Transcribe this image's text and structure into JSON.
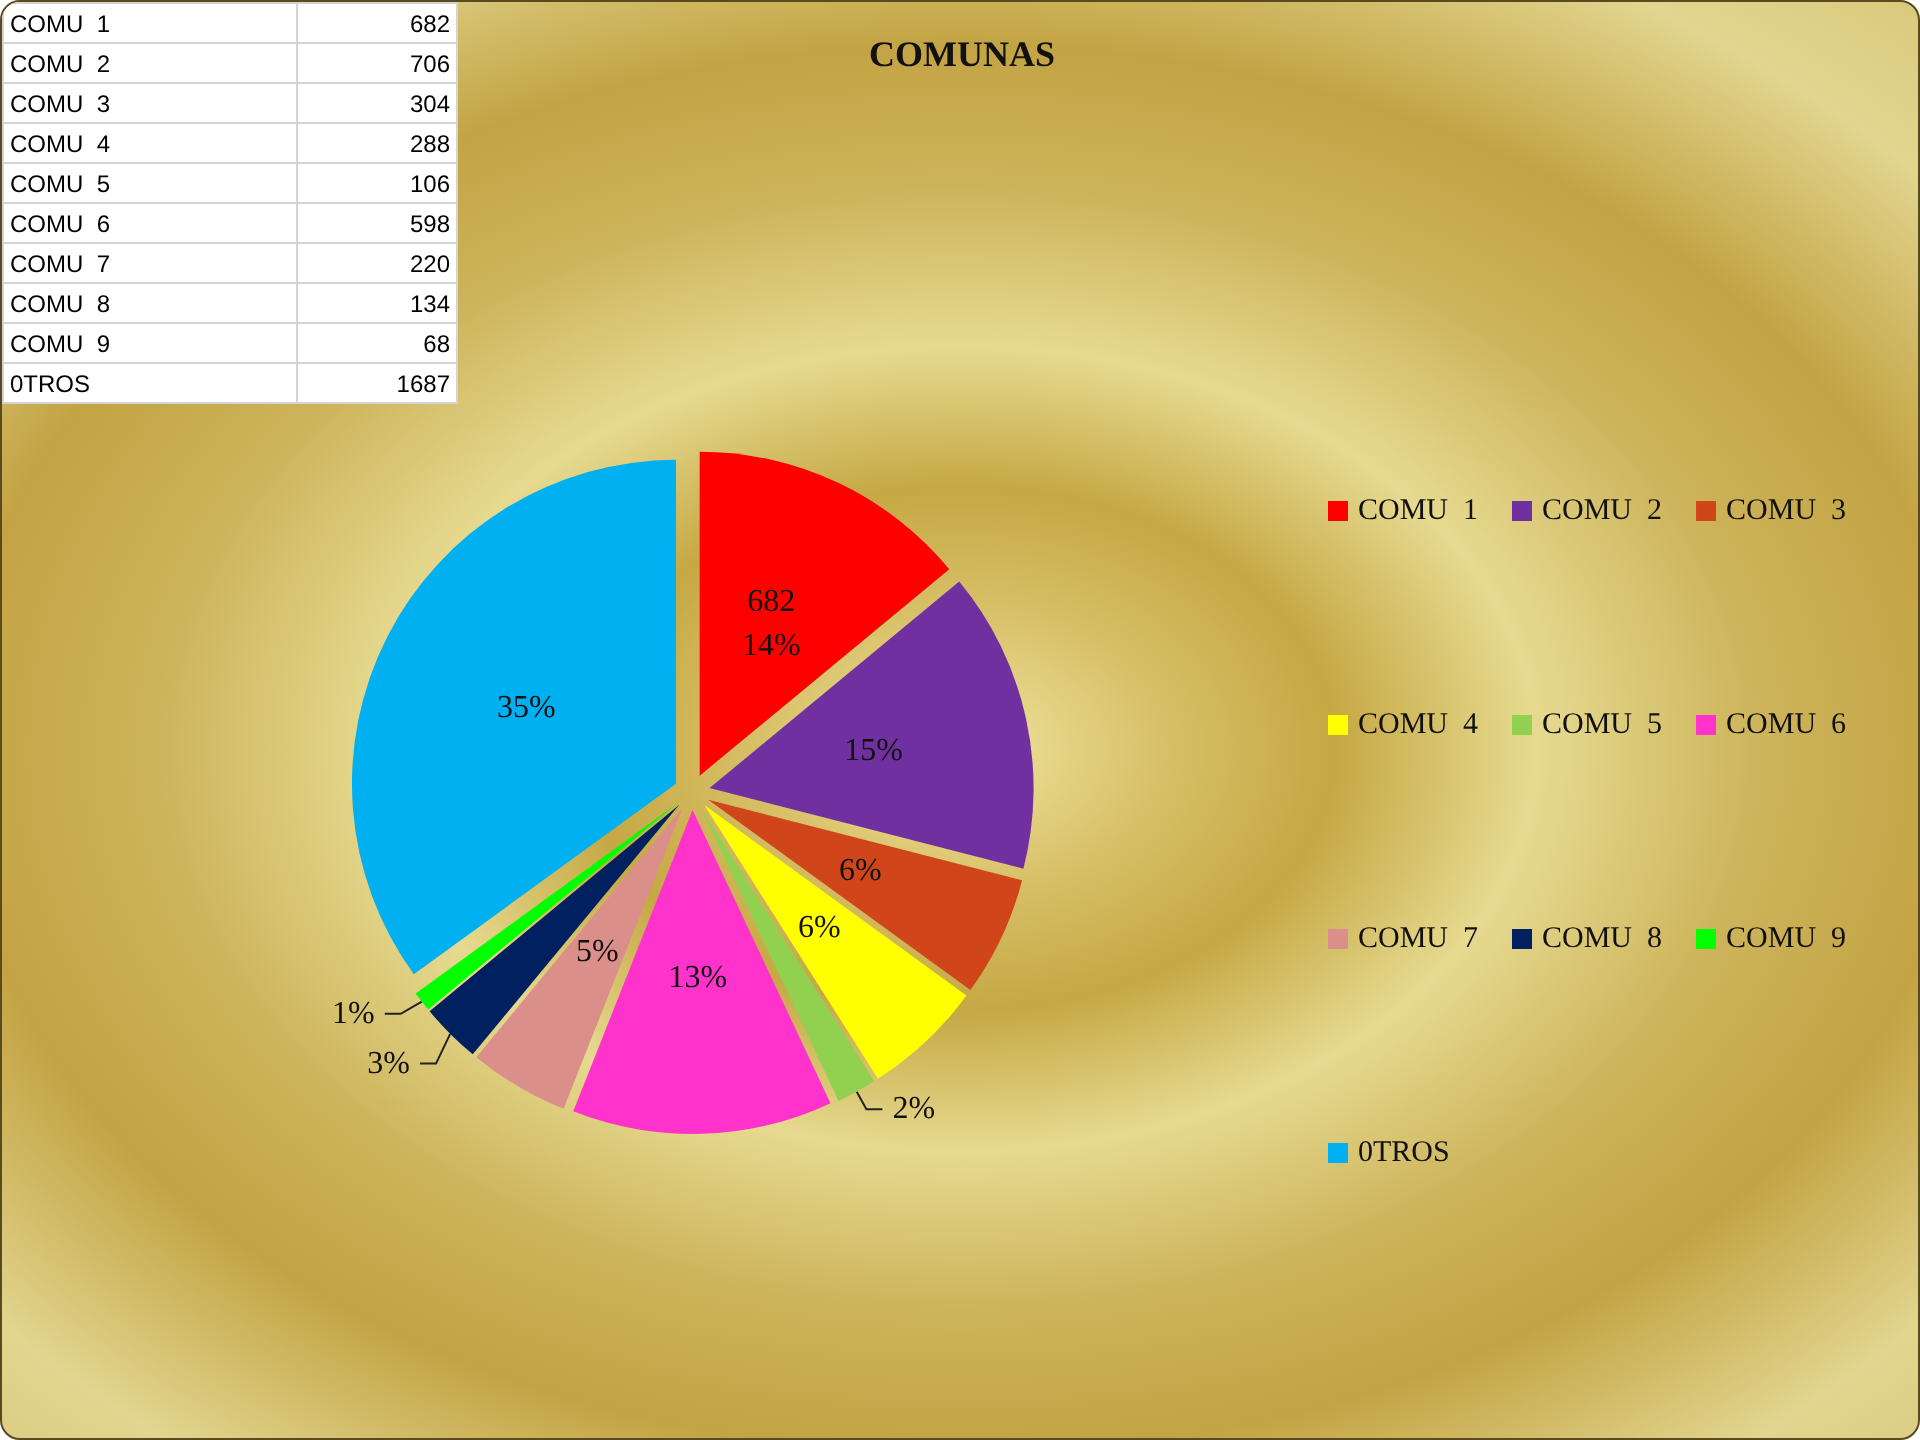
{
  "chart_data": [
    {
      "type": "other",
      "categories": [
        "COMU  1",
        "COMU  2",
        "COMU  3",
        "COMU  4",
        "COMU  5",
        "COMU  6",
        "COMU  7",
        "COMU  8",
        "COMU  9",
        "0TROS"
      ],
      "values": [
        682,
        706,
        304,
        288,
        106,
        598,
        220,
        134,
        68,
        1687
      ],
      "data_labels": true
    },
    {
      "type": "pie",
      "title": "COMUNAS",
      "categories": [
        "COMU  1",
        "COMU  2",
        "COMU  3",
        "COMU  4",
        "COMU  5",
        "COMU  6",
        "COMU  7",
        "COMU  8",
        "COMU  9",
        "0TROS"
      ],
      "values": [
        14,
        15,
        6,
        6,
        2,
        13,
        5,
        3,
        1,
        35
      ],
      "colors": [
        "#ff0000",
        "#7030a0",
        "#d0461a",
        "#ffff00",
        "#92d050",
        "#ff33cc",
        "#da8f8a",
        "#002060",
        "#00ff00",
        "#00b0f0"
      ],
      "value_labels": [
        "682\n14%",
        "15%",
        "6%",
        "6%",
        "2%",
        "13%",
        "5%",
        "3%",
        "1%",
        "35%"
      ],
      "legend": "right"
    }
  ]
}
